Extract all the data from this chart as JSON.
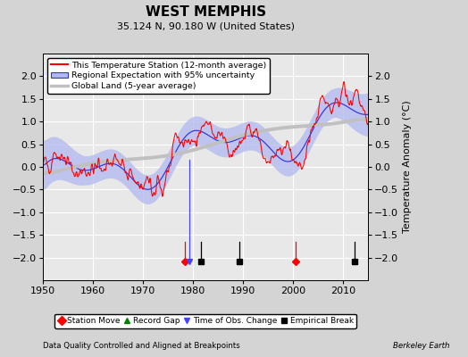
{
  "title": "WEST MEMPHIS",
  "subtitle": "35.124 N, 90.180 W (United States)",
  "ylabel": "Temperature Anomaly (°C)",
  "footer_left": "Data Quality Controlled and Aligned at Breakpoints",
  "footer_right": "Berkeley Earth",
  "xlim": [
    1950,
    2015
  ],
  "ylim": [
    -2.5,
    2.5
  ],
  "yticks": [
    -2,
    -1.5,
    -1,
    -0.5,
    0,
    0.5,
    1,
    1.5,
    2
  ],
  "xticks": [
    1950,
    1960,
    1970,
    1980,
    1990,
    2000,
    2010
  ],
  "outer_bg": "#d4d4d4",
  "plot_bg": "#e8e8e8",
  "legend_line1": "This Temperature Station (12-month average)",
  "legend_line2": "Regional Expectation with 95% uncertainty",
  "legend_line3": "Global Land (5-year average)",
  "station_move_years": [
    1978.3,
    2000.5
  ],
  "time_obs_years": [
    1979.2
  ],
  "empirical_break_years": [
    1981.5,
    1989.3,
    2012.2
  ],
  "event_y": -2.08,
  "event_line_top": -1.65
}
